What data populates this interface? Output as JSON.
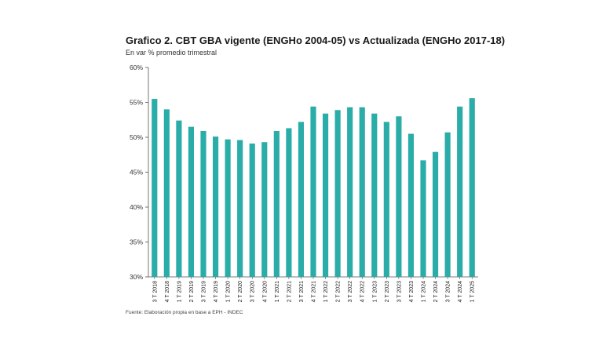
{
  "chart_data": {
    "type": "bar",
    "title": "Grafico 2. CBT GBA vigente (ENGHo 2004-05) vs Actualizada (ENGHo 2017-18)",
    "subtitle": "En var % promedio trimestral",
    "source": "Fuente: Elaboración propia en base a EPH - INDEC",
    "xlabel": "",
    "ylabel": "",
    "ylim": [
      30,
      60
    ],
    "yticks": [
      30,
      35,
      40,
      45,
      50,
      55,
      60
    ],
    "ytick_labels": [
      "30%",
      "35%",
      "40%",
      "45%",
      "50%",
      "55%",
      "60%"
    ],
    "grid": false,
    "bar_color": "#2aaca8",
    "categories": [
      "3 T 2018",
      "4 T 2018",
      "1 T 2019",
      "2 T 2019",
      "3 T 2019",
      "4 T 2019",
      "1 T 2020",
      "2 T 2020",
      "3 T 2020",
      "4 T 2020",
      "1 T 2021",
      "2 T 2021",
      "3 T 2021",
      "4 T 2021",
      "1 T 2022",
      "2 T 2022",
      "3 T 2022",
      "4 T 2022",
      "1 T 2023",
      "2 T 2023",
      "3 T 2023",
      "4 T 2023",
      "1 T 2024",
      "2 T 2024",
      "3 T 2024",
      "4 T 2024",
      "1 T 2025"
    ],
    "values": [
      55.5,
      54.0,
      52.4,
      51.5,
      50.9,
      50.1,
      49.7,
      49.6,
      49.1,
      49.3,
      50.9,
      51.3,
      52.2,
      54.4,
      53.4,
      53.9,
      54.3,
      54.3,
      53.4,
      52.2,
      53.0,
      50.5,
      46.7,
      47.9,
      50.7,
      54.4,
      55.6
    ]
  }
}
